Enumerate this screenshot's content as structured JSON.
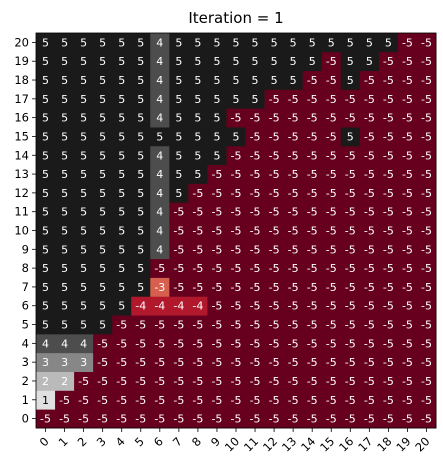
{
  "chart_data": {
    "type": "heatmap",
    "title": "Iteration = 1",
    "xlabel": "",
    "ylabel": "",
    "x_ticks": [
      "0",
      "1",
      "2",
      "3",
      "4",
      "5",
      "6",
      "7",
      "8",
      "9",
      "10",
      "11",
      "12",
      "13",
      "14",
      "15",
      "16",
      "17",
      "18",
      "19",
      "20"
    ],
    "y_ticks": [
      "0",
      "1",
      "2",
      "3",
      "4",
      "5",
      "6",
      "7",
      "8",
      "9",
      "10",
      "11",
      "12",
      "13",
      "14",
      "15",
      "16",
      "17",
      "18",
      "19",
      "20"
    ],
    "grid": false,
    "legend": "none",
    "colormap": "RdGy",
    "value_range": [
      -5,
      5
    ],
    "values": [
      [
        -5,
        -5,
        -5,
        -5,
        -5,
        -5,
        -5,
        -5,
        -5,
        -5,
        -5,
        -5,
        -5,
        -5,
        -5,
        -5,
        -5,
        -5,
        -5,
        -5,
        -5
      ],
      [
        1,
        -5,
        -5,
        -5,
        -5,
        -5,
        -5,
        -5,
        -5,
        -5,
        -5,
        -5,
        -5,
        -5,
        -5,
        -5,
        -5,
        -5,
        -5,
        -5,
        -5
      ],
      [
        2,
        2,
        -5,
        -5,
        -5,
        -5,
        -5,
        -5,
        -5,
        -5,
        -5,
        -5,
        -5,
        -5,
        -5,
        -5,
        -5,
        -5,
        -5,
        -5,
        -5
      ],
      [
        3,
        3,
        3,
        -5,
        -5,
        -5,
        -5,
        -5,
        -5,
        -5,
        -5,
        -5,
        -5,
        -5,
        -5,
        -5,
        -5,
        -5,
        -5,
        -5,
        -5
      ],
      [
        4,
        4,
        4,
        -5,
        -5,
        -5,
        -5,
        -5,
        -5,
        -5,
        -5,
        -5,
        -5,
        -5,
        -5,
        -5,
        -5,
        -5,
        -5,
        -5,
        -5
      ],
      [
        5,
        5,
        5,
        5,
        -5,
        -5,
        -5,
        -5,
        -5,
        -5,
        -5,
        -5,
        -5,
        -5,
        -5,
        -5,
        -5,
        -5,
        -5,
        -5,
        -5
      ],
      [
        5,
        5,
        5,
        5,
        5,
        -4,
        -4,
        -4,
        -4,
        -5,
        -5,
        -5,
        -5,
        -5,
        -5,
        -5,
        -5,
        -5,
        -5,
        -5,
        -5
      ],
      [
        5,
        5,
        5,
        5,
        5,
        5,
        -3,
        -5,
        -5,
        -5,
        -5,
        -5,
        -5,
        -5,
        -5,
        -5,
        -5,
        -5,
        -5,
        -5,
        -5
      ],
      [
        5,
        5,
        5,
        5,
        5,
        5,
        -5,
        -5,
        -5,
        -5,
        -5,
        -5,
        -5,
        -5,
        -5,
        -5,
        -5,
        -5,
        -5,
        -5,
        -5
      ],
      [
        5,
        5,
        5,
        5,
        5,
        5,
        4,
        -5,
        -5,
        -5,
        -5,
        -5,
        -5,
        -5,
        -5,
        -5,
        -5,
        -5,
        -5,
        -5,
        -5
      ],
      [
        5,
        5,
        5,
        5,
        5,
        5,
        4,
        -5,
        -5,
        -5,
        -5,
        -5,
        -5,
        -5,
        -5,
        -5,
        -5,
        -5,
        -5,
        -5,
        -5
      ],
      [
        5,
        5,
        5,
        5,
        5,
        5,
        4,
        -5,
        -5,
        -5,
        -5,
        -5,
        -5,
        -5,
        -5,
        -5,
        -5,
        -5,
        -5,
        -5,
        -5
      ],
      [
        5,
        5,
        5,
        5,
        5,
        5,
        4,
        5,
        -5,
        -5,
        -5,
        -5,
        -5,
        -5,
        -5,
        -5,
        -5,
        -5,
        -5,
        -5,
        -5
      ],
      [
        5,
        5,
        5,
        5,
        5,
        5,
        4,
        5,
        5,
        -5,
        -5,
        -5,
        -5,
        -5,
        -5,
        -5,
        -5,
        -5,
        -5,
        -5,
        -5
      ],
      [
        5,
        5,
        5,
        5,
        5,
        5,
        4,
        5,
        5,
        5,
        -5,
        -5,
        -5,
        -5,
        -5,
        -5,
        -5,
        -5,
        -5,
        -5,
        -5
      ],
      [
        5,
        5,
        5,
        5,
        5,
        5,
        5,
        5,
        5,
        5,
        5,
        -5,
        -5,
        -5,
        -5,
        -5,
        5,
        -5,
        -5,
        -5,
        -5
      ],
      [
        5,
        5,
        5,
        5,
        5,
        5,
        4,
        5,
        5,
        5,
        -5,
        -5,
        -5,
        -5,
        -5,
        -5,
        -5,
        -5,
        -5,
        -5,
        -5
      ],
      [
        5,
        5,
        5,
        5,
        5,
        5,
        4,
        5,
        5,
        5,
        5,
        5,
        -5,
        -5,
        -5,
        -5,
        -5,
        -5,
        -5,
        -5,
        -5
      ],
      [
        5,
        5,
        5,
        5,
        5,
        5,
        4,
        5,
        5,
        5,
        5,
        5,
        5,
        5,
        -5,
        -5,
        5,
        -5,
        -5,
        -5,
        -5
      ],
      [
        5,
        5,
        5,
        5,
        5,
        5,
        4,
        5,
        5,
        5,
        5,
        5,
        5,
        5,
        5,
        -5,
        5,
        5,
        -5,
        -5,
        -5
      ],
      [
        5,
        5,
        5,
        5,
        5,
        5,
        4,
        5,
        5,
        5,
        5,
        5,
        5,
        5,
        5,
        5,
        5,
        5,
        5,
        -5,
        -5
      ]
    ]
  }
}
